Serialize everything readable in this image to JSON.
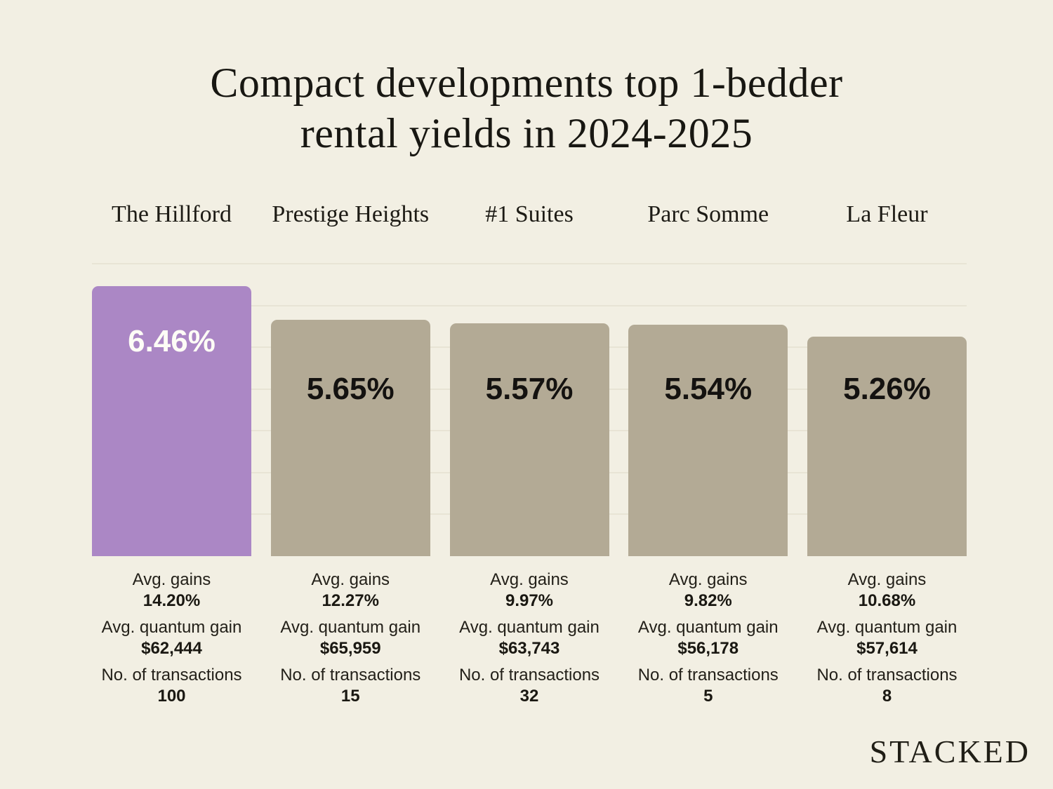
{
  "title": {
    "line1": "Compact developments top 1-bedder",
    "line2": "rental yields in 2024-2025"
  },
  "watermark": "STACKED",
  "stat_labels": {
    "gains": "Avg. gains",
    "quantum": "Avg. quantum gain",
    "transactions": "No. of transactions"
  },
  "colors": {
    "background": "#f2efe3",
    "bar_default": "#b3aa95",
    "bar_highlight": "#ab87c5",
    "gridline": "#e8e4d5",
    "text_dark": "#1e1c16",
    "bar_label_on_highlight": "#fdfcf6"
  },
  "chart_data": {
    "type": "bar",
    "title": "Compact developments top 1-bedder rental yields in 2024-2025",
    "xlabel": "",
    "ylabel": "",
    "categories": [
      "The Hillford",
      "Prestige Heights",
      "#1 Suites",
      "Parc Somme",
      "La Fleur"
    ],
    "values": [
      6.46,
      5.65,
      5.57,
      5.54,
      5.26
    ],
    "bar_labels": [
      "6.46%",
      "5.65%",
      "5.57%",
      "5.54%",
      "5.26%"
    ],
    "ylim": [
      0,
      7
    ],
    "gridline_step": 1,
    "grid": true,
    "legend_position": "none",
    "highlight_index": 0,
    "columns": [
      {
        "name": "The Hillford",
        "yield_pct": 6.46,
        "yield_label": "6.46%",
        "avg_gains": "14.20%",
        "avg_quantum_gain": "$62,444",
        "transactions": "100"
      },
      {
        "name": "Prestige Heights",
        "yield_pct": 5.65,
        "yield_label": "5.65%",
        "avg_gains": "12.27%",
        "avg_quantum_gain": "$65,959",
        "transactions": "15"
      },
      {
        "name": "#1 Suites",
        "yield_pct": 5.57,
        "yield_label": "5.57%",
        "avg_gains": "9.97%",
        "avg_quantum_gain": "$63,743",
        "transactions": "32"
      },
      {
        "name": "Parc Somme",
        "yield_pct": 5.54,
        "yield_label": "5.54%",
        "avg_gains": "9.82%",
        "avg_quantum_gain": "$56,178",
        "transactions": "5"
      },
      {
        "name": "La Fleur",
        "yield_pct": 5.26,
        "yield_label": "5.26%",
        "avg_gains": "10.68%",
        "avg_quantum_gain": "$57,614",
        "transactions": "8"
      }
    ]
  }
}
